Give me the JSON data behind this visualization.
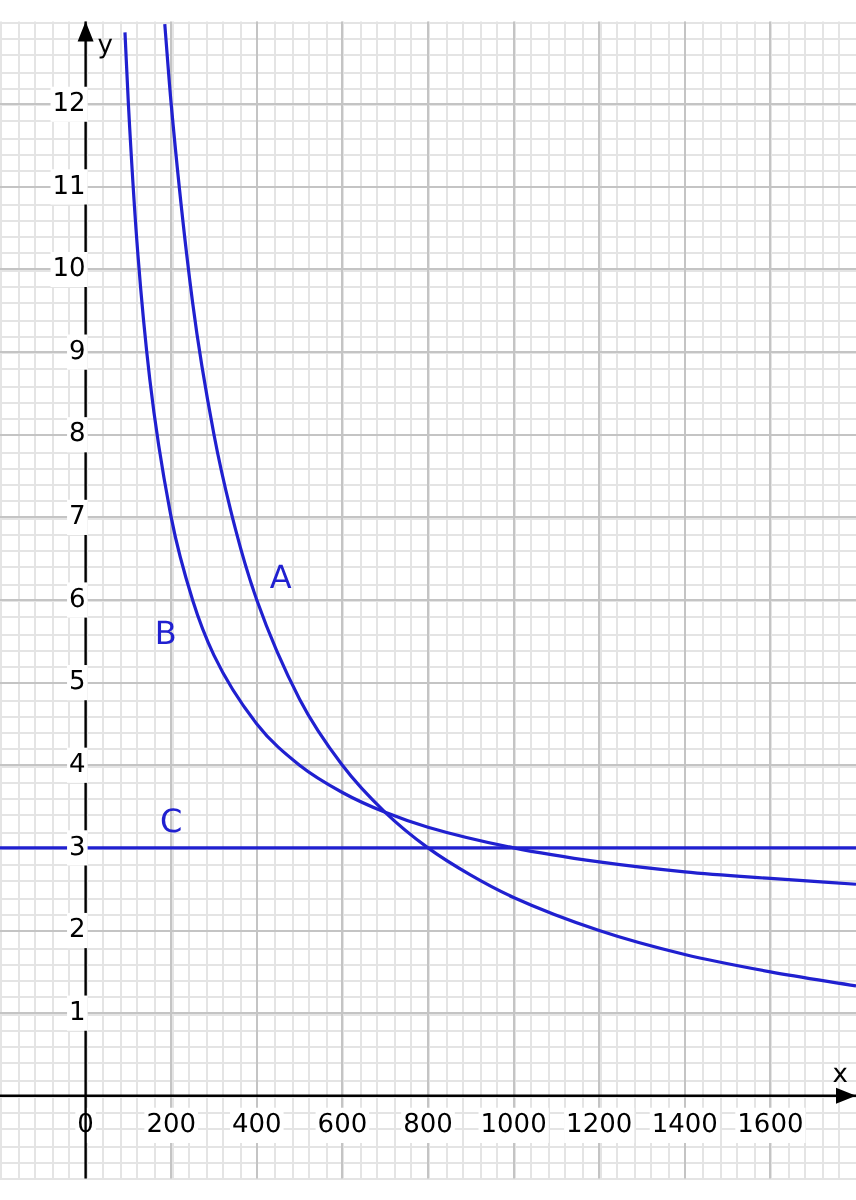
{
  "chart_data": {
    "type": "line",
    "xlabel": "x",
    "ylabel": "y",
    "xlim": [
      -200,
      1800
    ],
    "ylim": [
      -1,
      13
    ],
    "xticks": [
      0,
      200,
      400,
      600,
      800,
      1000,
      1200,
      1400,
      1600
    ],
    "yticks": [
      1,
      2,
      3,
      4,
      5,
      6,
      7,
      8,
      9,
      10,
      11,
      12
    ],
    "grid": true,
    "legend": false,
    "marker": "none",
    "line_style": "solid",
    "series": [
      {
        "name": "A",
        "color": "#2020d0",
        "x": [
          185,
          200,
          250,
          300,
          350,
          400,
          500,
          600,
          700,
          800,
          900,
          1000,
          1200,
          1400,
          1600,
          1800
        ],
        "values": [
          12.97,
          12,
          9.6,
          8,
          6.86,
          6,
          4.8,
          4,
          3.43,
          3,
          2.67,
          2.4,
          2,
          1.71,
          1.5,
          1.33
        ]
      },
      {
        "name": "B",
        "color": "#2020d0",
        "x": [
          92,
          100,
          120,
          150,
          200,
          250,
          300,
          400,
          500,
          600,
          700,
          800,
          1000,
          1200,
          1400,
          1600,
          1800
        ],
        "values": [
          12.87,
          12,
          10.33,
          8.67,
          7,
          6,
          5.33,
          4.5,
          4,
          3.67,
          3.43,
          3.25,
          3,
          2.83,
          2.71,
          2.63,
          2.56
        ]
      }
    ],
    "ref_lines": [
      {
        "axis": "y",
        "value": 3,
        "label": "C",
        "color": "#2020d0"
      }
    ]
  }
}
